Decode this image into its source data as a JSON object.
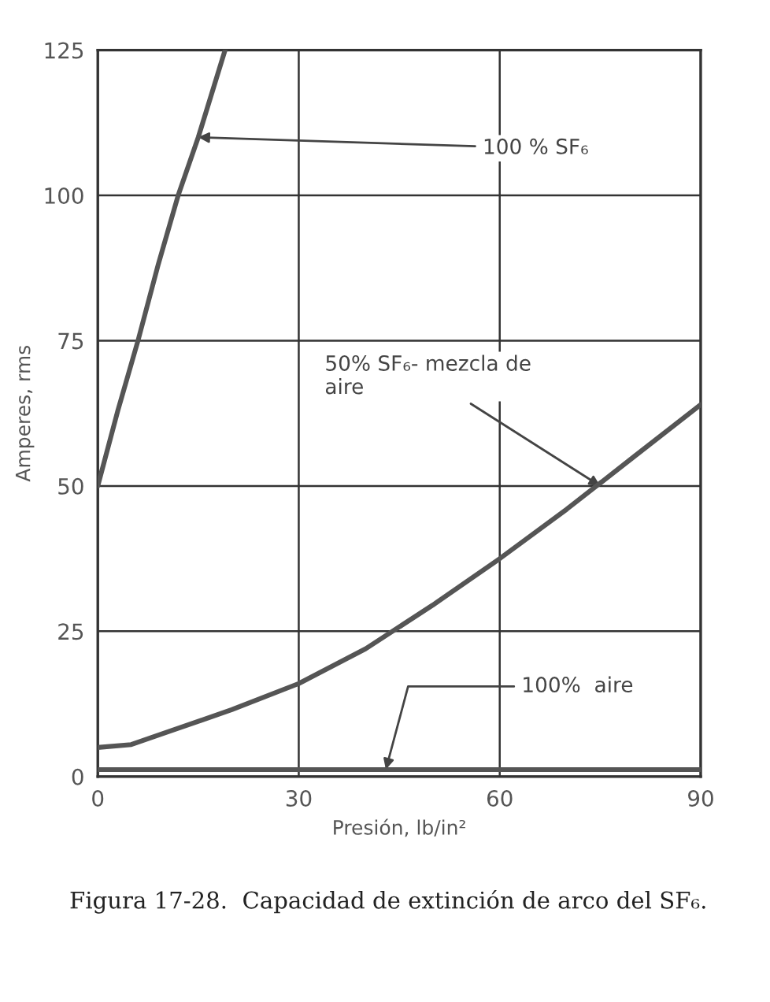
{
  "chart_data": {
    "type": "line",
    "xlabel": "Presión, lb/in²",
    "ylabel": "Amperes, rms",
    "x": [
      0,
      3,
      6,
      9,
      12,
      15,
      19
    ],
    "series": [
      {
        "color": "#555555",
        "values": [
          50,
          63,
          75,
          88,
          100,
          110,
          125
        ]
      },
      {
        "color": "#555555",
        "x": [
          0,
          5,
          10,
          20,
          30,
          40,
          50,
          60,
          70,
          80,
          90
        ],
        "values": [
          5,
          5.5,
          7.5,
          11.5,
          16,
          22,
          29.5,
          37.5,
          46,
          55,
          64
        ]
      },
      {
        "color": "#555555",
        "x": [
          0,
          30,
          60,
          90
        ],
        "values": [
          1.2,
          1.2,
          1.2,
          1.2
        ]
      }
    ],
    "xlim": [
      0,
      90
    ],
    "xticks": [
      0,
      30,
      60,
      90
    ],
    "ylim": [
      0,
      125
    ],
    "yticks": [
      0,
      25,
      50,
      75,
      100,
      125
    ],
    "grid": true,
    "legend": false,
    "marker": "none",
    "line_style": "solid",
    "annotations": [
      {
        "text": "100 % SF₆",
        "x": 15,
        "y": 110
      },
      {
        "text": "50% SF₆- mezcla de\naire",
        "x": 75,
        "y": 50
      },
      {
        "text": "100%  aire",
        "x": 43,
        "y": 1.2
      },
      "Figura 17-28.  Capacidad de extinción de arco del SF₆."
    ]
  }
}
